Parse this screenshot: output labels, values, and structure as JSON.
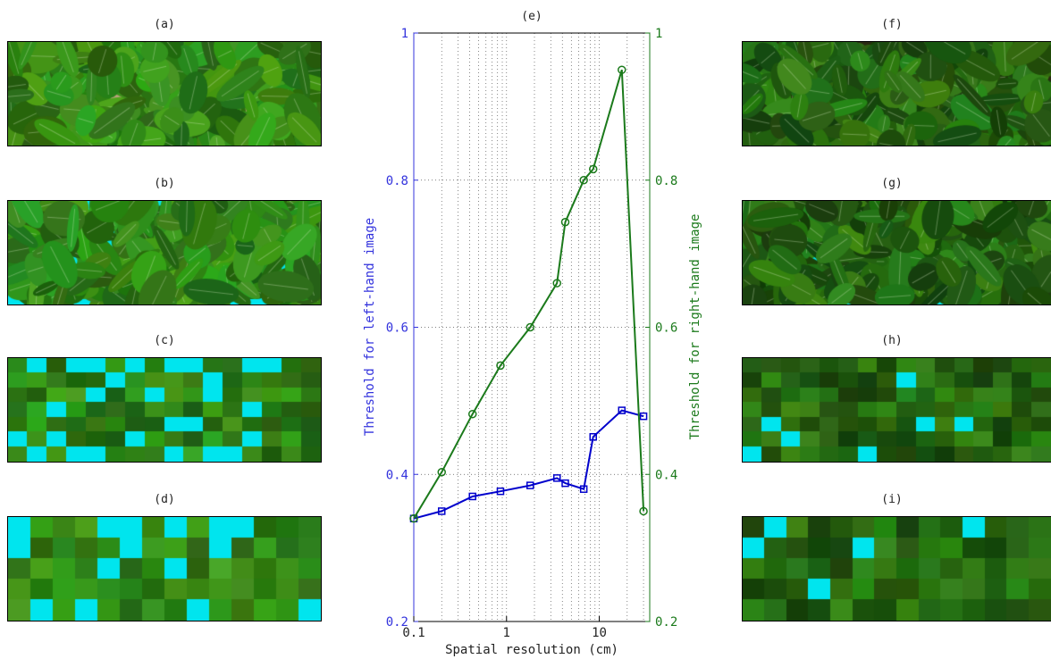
{
  "panels": {
    "left": [
      {
        "label": "(a)",
        "kind": "photo",
        "soil": "#b9a27c"
      },
      {
        "label": "(b)",
        "kind": "segmented",
        "bg": "#00e5ee"
      },
      {
        "label": "(c)",
        "kind": "pixelated",
        "cols": 16,
        "rows": 7,
        "bg": "#00e5ee"
      },
      {
        "label": "(d)",
        "kind": "pixelated",
        "cols": 14,
        "rows": 5,
        "bg": "#00e5ee"
      }
    ],
    "right": [
      {
        "label": "(f)",
        "kind": "photo",
        "soil": "#2a2a12"
      },
      {
        "label": "(g)",
        "kind": "segmented",
        "bg": "#00e5ee"
      },
      {
        "label": "(h)",
        "kind": "pixelated",
        "cols": 16,
        "rows": 7,
        "bg": "#00e5ee"
      },
      {
        "label": "(i)",
        "kind": "pixelated",
        "cols": 14,
        "rows": 5,
        "bg": "#00e5ee"
      }
    ]
  },
  "chart_data": {
    "type": "line",
    "title": "(e)",
    "xlabel": "Spatial resolution (cm)",
    "ylabel_left": "Threshold for left-hand image",
    "ylabel_right": "Threshold for right-hand image",
    "xscale": "log",
    "xlim": [
      0.1,
      35
    ],
    "ylim": [
      0.2,
      1
    ],
    "x_ticks": [
      0.1,
      1,
      10
    ],
    "x_tick_labels": [
      "0.1",
      "1",
      "10"
    ],
    "y_ticks": [
      0.2,
      0.4,
      0.6,
      0.8,
      1
    ],
    "y_tick_labels": [
      "0.2",
      "0.4",
      "0.6",
      "0.8",
      "1"
    ],
    "grid": true,
    "series": [
      {
        "color": "#0000cc",
        "marker": "square",
        "axis": "left",
        "x": [
          0.1,
          0.2,
          0.43,
          0.86,
          1.8,
          3.5,
          4.3,
          6.8,
          8.6,
          17.5,
          30
        ],
        "y": [
          0.34,
          0.35,
          0.37,
          0.377,
          0.385,
          0.395,
          0.388,
          0.38,
          0.451,
          0.487,
          0.479
        ]
      },
      {
        "color": "#1b7a1b",
        "marker": "circle",
        "axis": "right",
        "x": [
          0.1,
          0.2,
          0.43,
          0.86,
          1.8,
          3.5,
          4.3,
          6.8,
          8.6,
          17.5,
          30
        ],
        "y": [
          0.34,
          0.403,
          0.482,
          0.548,
          0.6,
          0.66,
          0.743,
          0.8,
          0.815,
          0.95,
          0.35
        ]
      }
    ]
  }
}
